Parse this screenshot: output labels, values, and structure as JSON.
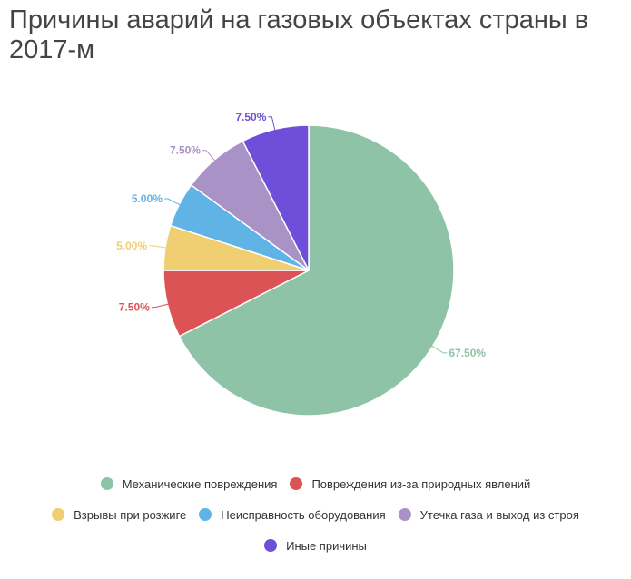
{
  "title": "Причины аварий на газовых объектах страны в 2017-м",
  "chart_data": {
    "type": "pie",
    "title": "Причины аварий на газовых объектах страны в 2017-м",
    "slices": [
      {
        "label": "Механические повреждения",
        "value": 67.5,
        "display": "67.50%",
        "color": "#8ec3a7"
      },
      {
        "label": "Повреждения из-за природных явлений",
        "value": 7.5,
        "display": "7.50%",
        "color": "#dc5356"
      },
      {
        "label": "Взрывы при розжиге",
        "value": 5.0,
        "display": "5.00%",
        "color": "#f0cf73"
      },
      {
        "label": "Неисправность оборудования",
        "value": 5.0,
        "display": "5.00%",
        "color": "#5fb4e5"
      },
      {
        "label": "Утечка газа и выход из строя",
        "value": 7.5,
        "display": "7.50%",
        "color": "#a993c6"
      },
      {
        "label": "Иные причины",
        "value": 7.5,
        "display": "7.50%",
        "color": "#6f4fd9"
      }
    ],
    "legend_position": "bottom"
  }
}
